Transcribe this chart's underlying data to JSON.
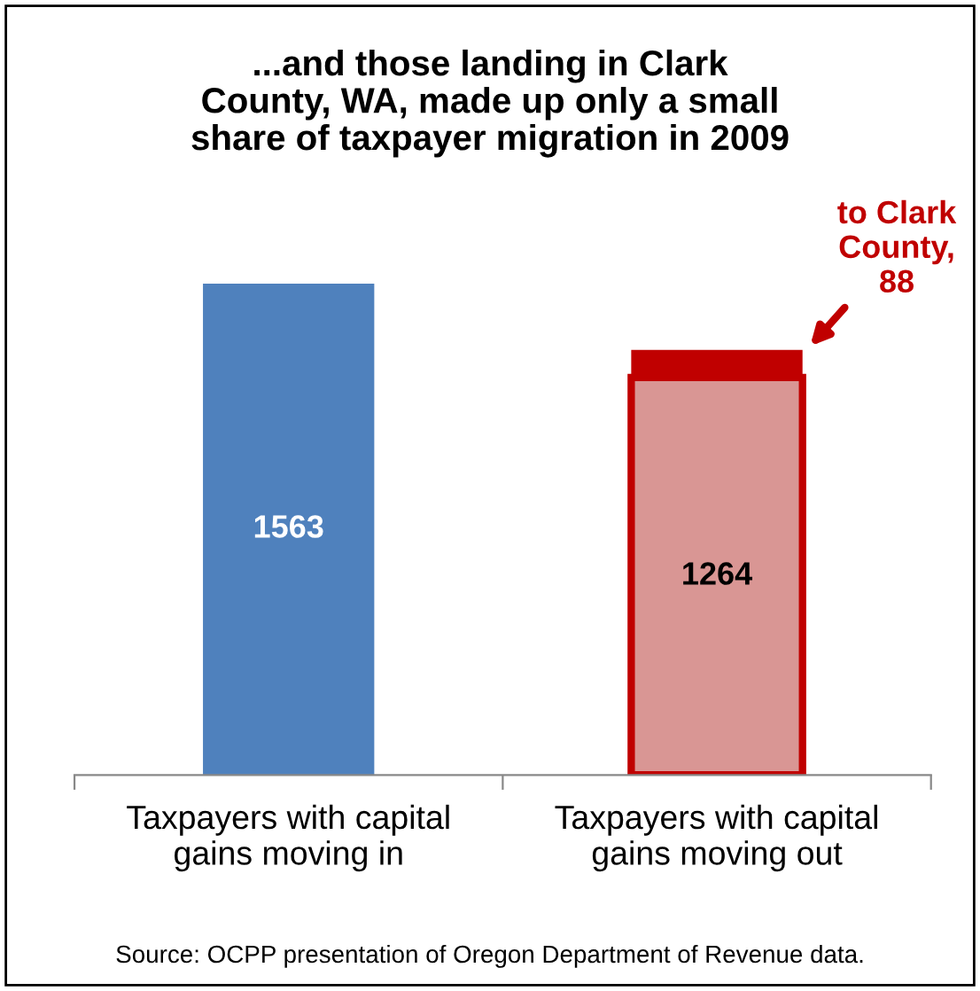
{
  "chart_data": {
    "type": "bar",
    "title": "...and those landing in Clark\nCounty, WA, made up only a small\nshare of taxpayer migration in 2009",
    "categories": [
      "Taxpayers with capital\ngains moving in",
      "Taxpayers with capital\ngains moving out"
    ],
    "stacked": true,
    "series": [
      {
        "colors": [
          "#4f81bd",
          "#d99694"
        ],
        "values": [
          1563,
          1264
        ],
        "value_labels": [
          "1563",
          "1264"
        ]
      },
      {
        "color": "#c00000",
        "values": [
          null,
          88
        ]
      }
    ],
    "annotations": [
      "to Clark\nCounty,\n88",
      "Source: OCPP presentation of Oregon Department of Revenue data."
    ],
    "grid": false
  }
}
